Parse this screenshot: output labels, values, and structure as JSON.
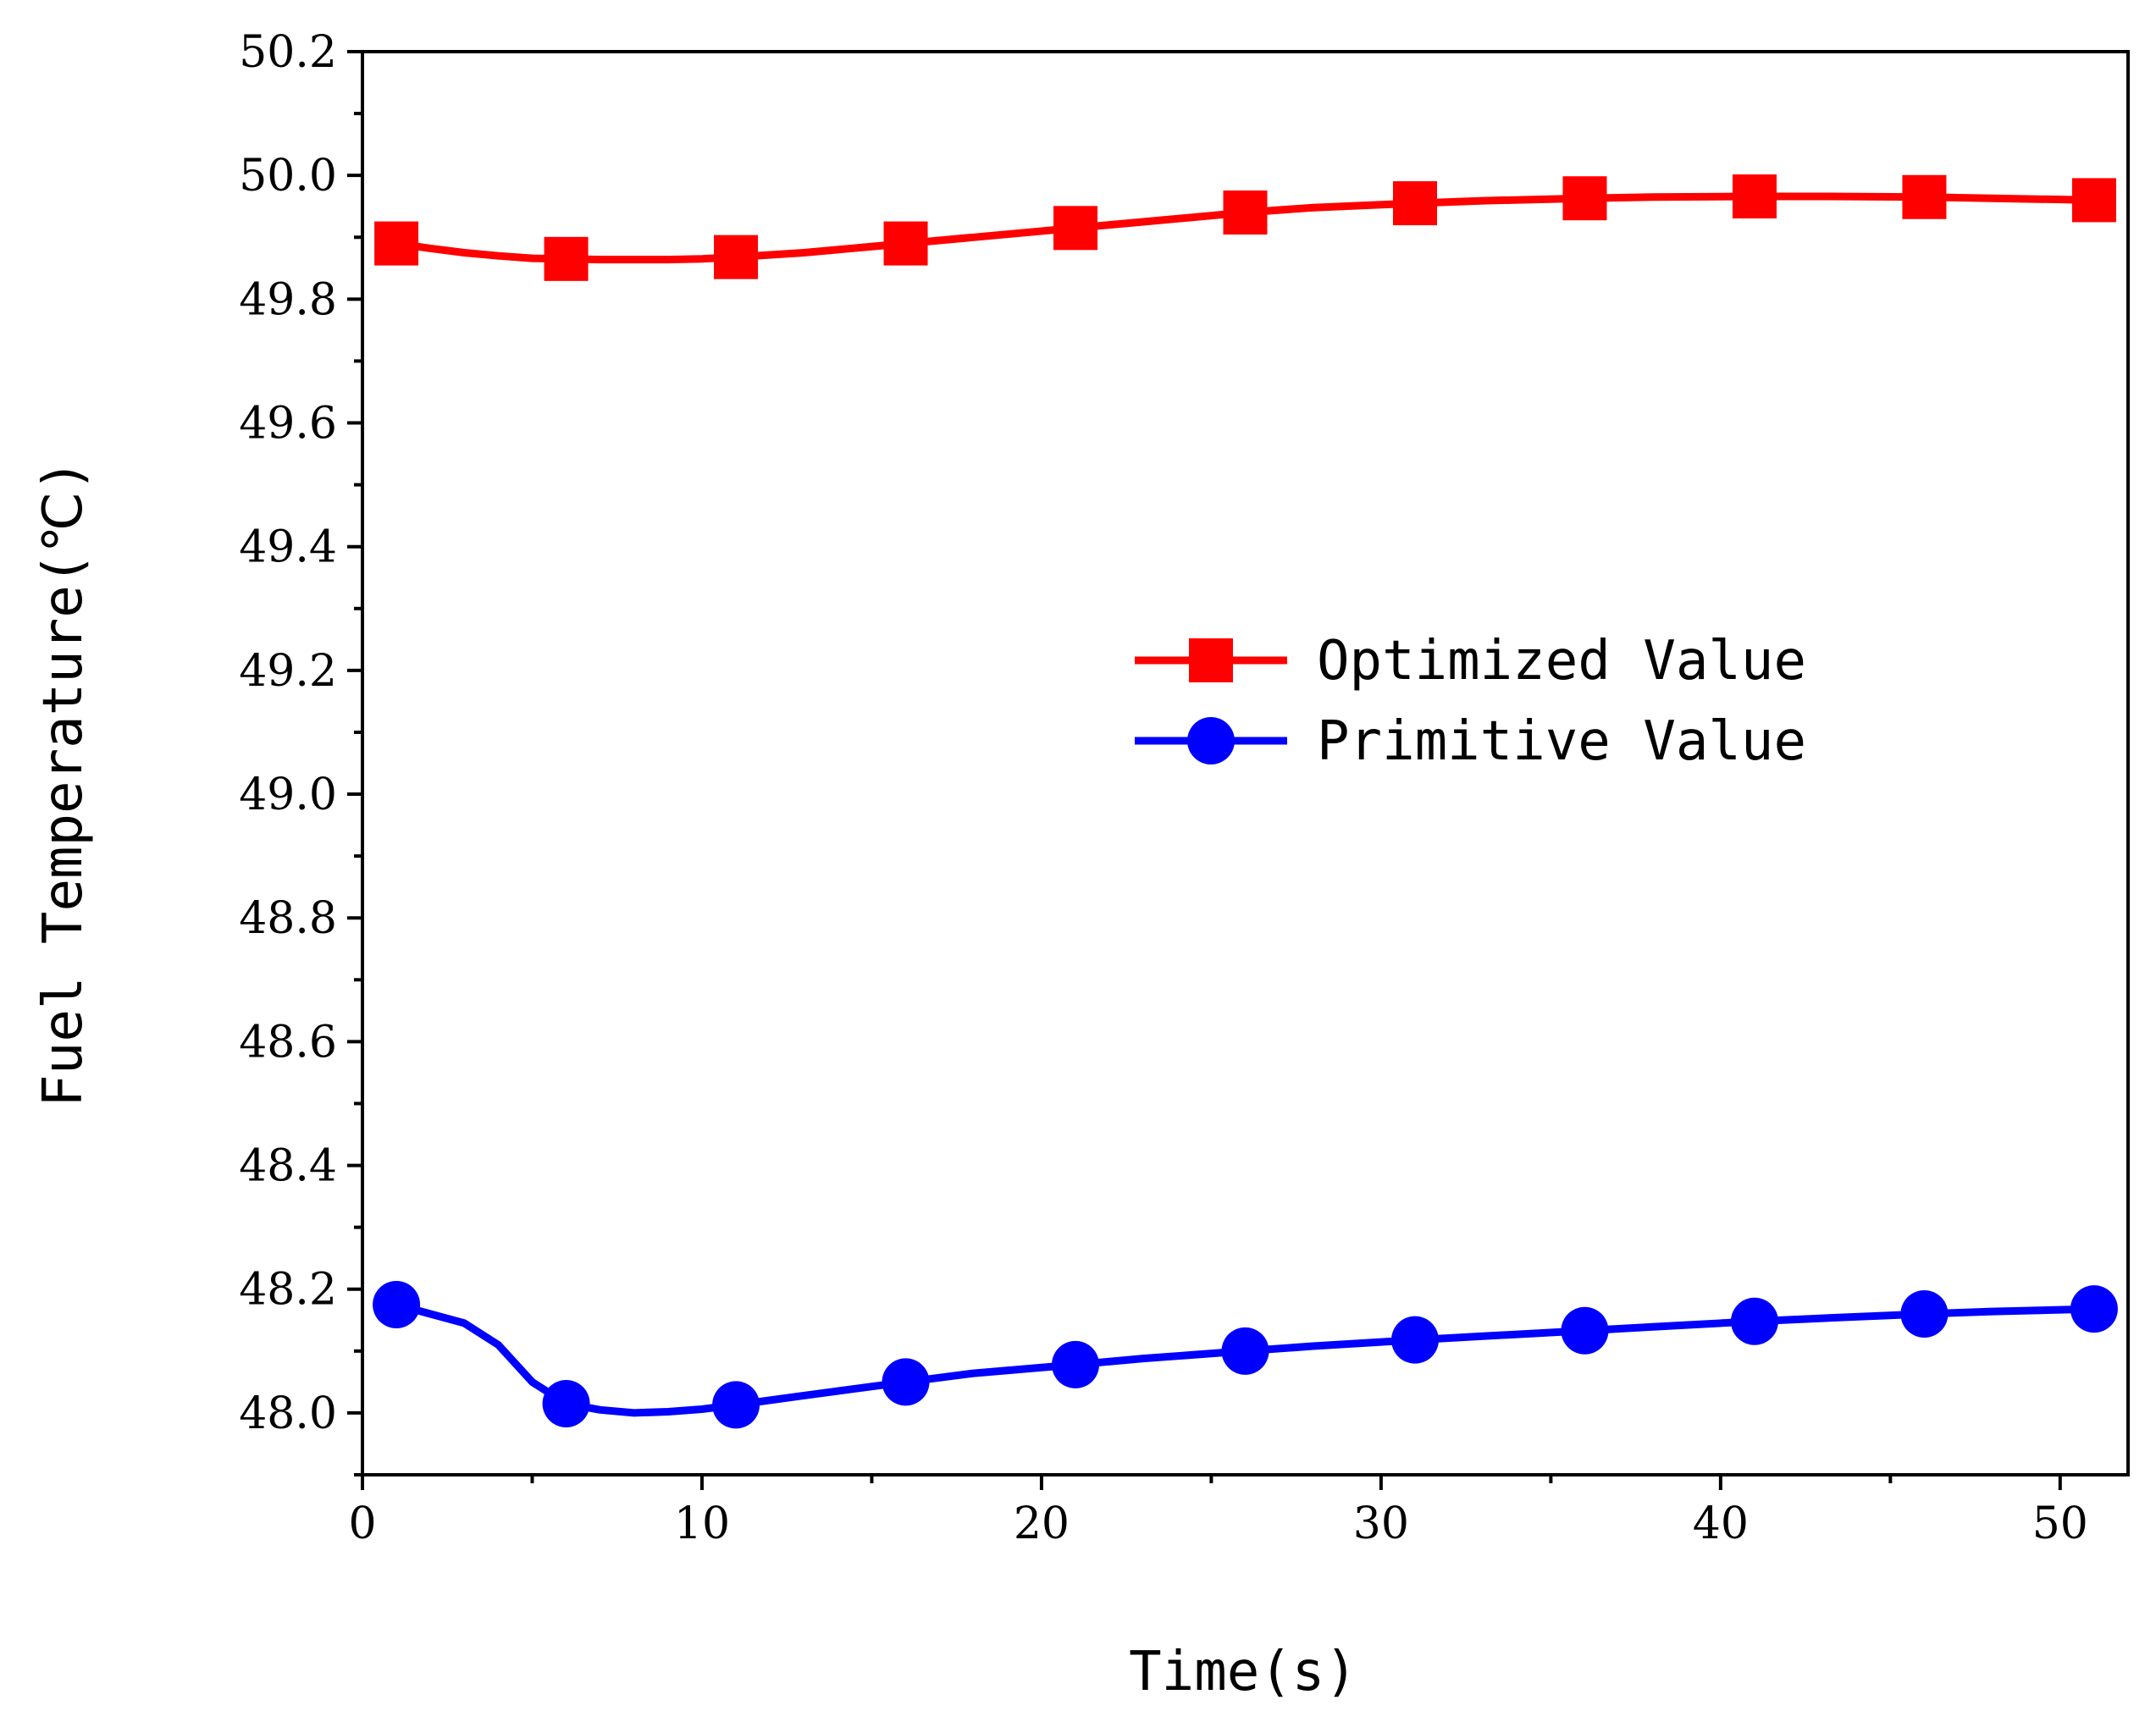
{
  "chart_data": {
    "type": "line",
    "title": "",
    "xlabel": "Time(s)",
    "ylabel": "Fuel Temperature(℃)",
    "xlim": [
      0,
      52
    ],
    "ylim": [
      47.9,
      50.2
    ],
    "x_ticks": [
      0,
      10,
      20,
      30,
      40,
      50
    ],
    "x_tick_labels": [
      "0",
      "10",
      "20",
      "30",
      "40",
      "50"
    ],
    "y_ticks": [
      48.0,
      48.2,
      48.4,
      48.6,
      48.8,
      49.0,
      49.2,
      49.4,
      49.6,
      49.8,
      50.0,
      50.2
    ],
    "y_tick_labels": [
      "48.0",
      "48.2",
      "48.4",
      "48.6",
      "48.8",
      "49.0",
      "49.2",
      "49.4",
      "49.6",
      "49.8",
      "50.0",
      "50.2"
    ],
    "grid": false,
    "legend_position": "center-right",
    "x": [
      1,
      6,
      11,
      16,
      21,
      26,
      31,
      36,
      41,
      46,
      51
    ],
    "series": [
      {
        "name": "Optimized Value",
        "color": "#ff0000",
        "marker": "square",
        "values": [
          49.89,
          49.865,
          49.868,
          49.89,
          49.915,
          49.94,
          49.955,
          49.963,
          49.966,
          49.965,
          49.96
        ],
        "curve_x": [
          1,
          2,
          3,
          4,
          5,
          6,
          7,
          8,
          9,
          10,
          11,
          13,
          16,
          18,
          21,
          23,
          26,
          28,
          31,
          33,
          36,
          38,
          41,
          43,
          46,
          48,
          51
        ],
        "curve_y": [
          49.89,
          49.882,
          49.875,
          49.87,
          49.866,
          49.865,
          49.864,
          49.864,
          49.864,
          49.865,
          49.868,
          49.875,
          49.89,
          49.9,
          49.915,
          49.925,
          49.94,
          49.948,
          49.955,
          49.959,
          49.963,
          49.965,
          49.966,
          49.966,
          49.965,
          49.963,
          49.96
        ]
      },
      {
        "name": "Primitive Value",
        "color": "#0000ff",
        "marker": "circle",
        "values": [
          48.175,
          48.015,
          48.013,
          48.05,
          48.078,
          48.1,
          48.118,
          48.133,
          48.148,
          48.16,
          48.168
        ],
        "curve_x": [
          1,
          2,
          3,
          4,
          5,
          6,
          7,
          8,
          9,
          10,
          11,
          13,
          16,
          18,
          21,
          23,
          26,
          28,
          31,
          33,
          36,
          38,
          41,
          43,
          46,
          48,
          51
        ],
        "curve_y": [
          48.175,
          48.16,
          48.145,
          48.11,
          48.05,
          48.015,
          48.005,
          48.0,
          48.002,
          48.006,
          48.013,
          48.028,
          48.05,
          48.064,
          48.078,
          48.088,
          48.1,
          48.108,
          48.118,
          48.124,
          48.133,
          48.139,
          48.148,
          48.153,
          48.16,
          48.164,
          48.168
        ]
      }
    ]
  }
}
